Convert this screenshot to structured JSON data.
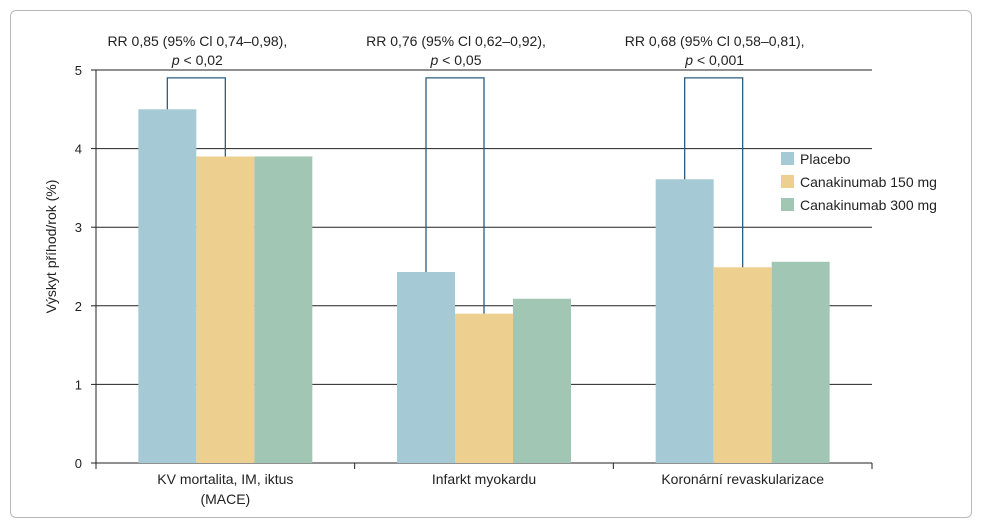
{
  "chart_data": {
    "type": "bar",
    "ylabel": "Výskyt příhod/rok (%)",
    "ylim": [
      0,
      5
    ],
    "yticks": [
      "0",
      "1",
      "2",
      "3",
      "4",
      "5"
    ],
    "grid": true,
    "legend_position": "right",
    "categories": [
      {
        "line1": "KV mortalita, IM, iktus",
        "line2": "(MACE)"
      },
      {
        "line1": "Infarkt myokardu",
        "line2": ""
      },
      {
        "line1": "Koronární revaskularizace",
        "line2": ""
      }
    ],
    "series": [
      {
        "name": "Placebo",
        "color": "#a5cad6",
        "values": [
          4.5,
          2.43,
          3.61
        ]
      },
      {
        "name": "Canakinumab 150 mg",
        "color": "#edd08f",
        "values": [
          3.9,
          1.9,
          2.49
        ]
      },
      {
        "name": "Canakinumab 300 mg",
        "color": "#a1c7b4",
        "values": [
          3.9,
          2.09,
          2.56
        ]
      }
    ],
    "annotations": [
      {
        "line1": "RR 0,85 (95% Cl 0,74–0,98),",
        "p_symbol": "p",
        "p_text": " < 0,02"
      },
      {
        "line1": "RR 0,76 (95% Cl 0,62–0,92),",
        "p_symbol": "p",
        "p_text": " < 0,05"
      },
      {
        "line1": "RR 0,68 (95% Cl 0,58–0,81),",
        "p_symbol": "p",
        "p_text": " < 0,001"
      }
    ],
    "colors": {
      "bracket": "#2a5d80",
      "grid": "#222222"
    }
  }
}
